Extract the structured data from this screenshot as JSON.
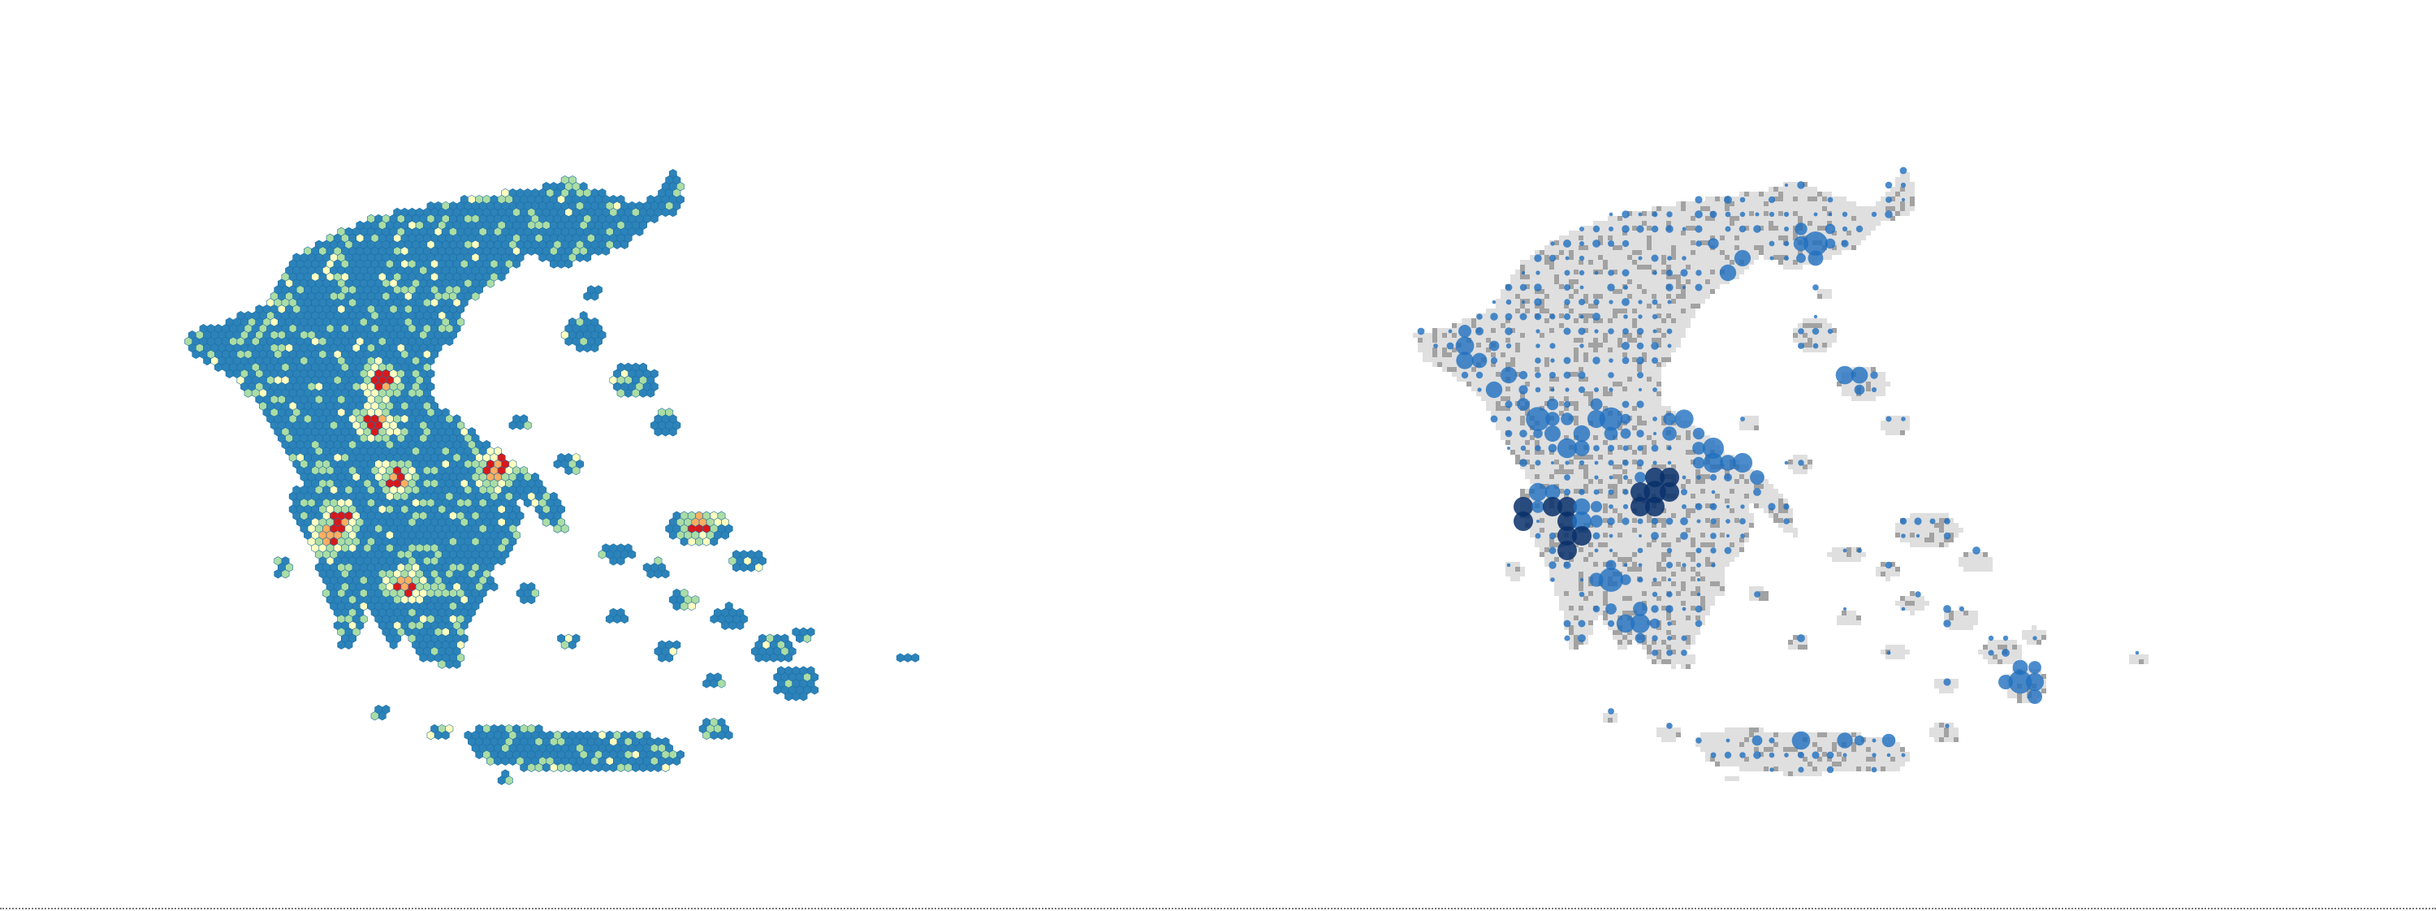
{
  "figure": {
    "panels": [
      {
        "id": "hexbin-map",
        "type": "hexbin",
        "title": ""
      },
      {
        "id": "bubble-map",
        "type": "bubble",
        "title": ""
      }
    ]
  },
  "colors": {
    "hex_base": "#2b83ba",
    "hex_stroke": "#1f6fa3",
    "hex_scale": [
      "#2b83ba",
      "#abdda4",
      "#ffffbf",
      "#fdae61",
      "#d7191c"
    ],
    "bubble_light": "#1f6fbf",
    "bubble_dark": "#08306b",
    "relief_fill": "#d9d9d9",
    "relief_shade": "#555555"
  }
}
